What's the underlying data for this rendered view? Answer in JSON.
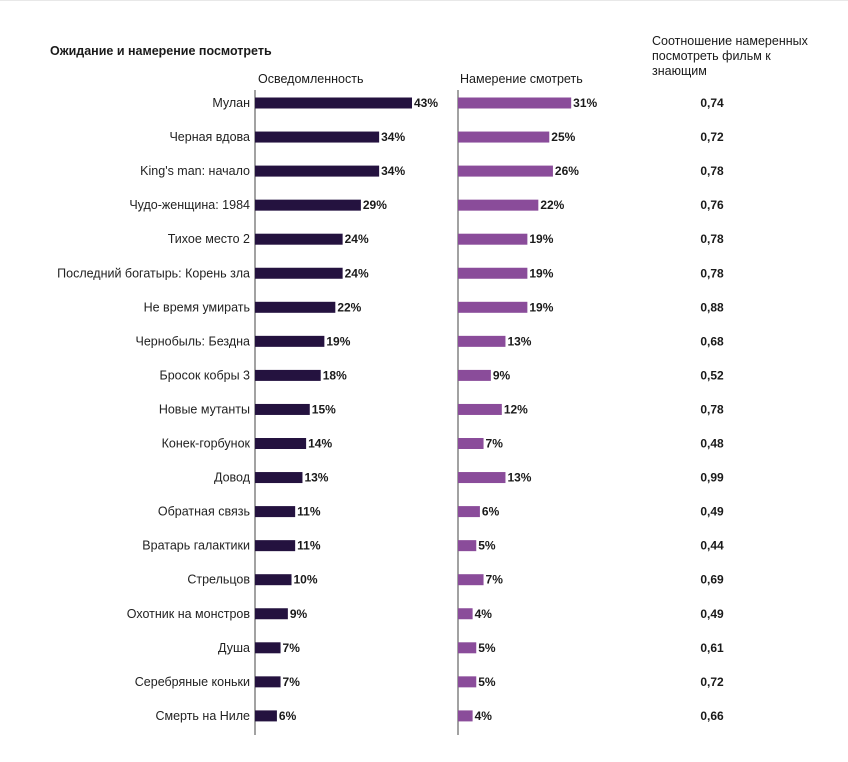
{
  "title": "Ожидание и намерение посмотреть",
  "colors": {
    "awareness": "#24123f",
    "intention": "#8a4c9a"
  },
  "chart_data": {
    "type": "bar",
    "title": "Ожидание и намерение посмотреть",
    "ratio_header": "Соотношение намеренных посмотреть фильм к знающим",
    "categories": [
      "Мулан",
      "Черная вдова",
      "King's man: начало",
      "Чудо-женщина: 1984",
      "Тихое место 2",
      "Последний богатырь: Корень зла",
      "Не время умирать",
      "Чернобыль: Бездна",
      "Бросок кобры 3",
      "Новые мутанты",
      "Конек-горбунок",
      "Довод",
      "Обратная связь",
      "Вратарь галактики",
      "Стрельцов",
      "Охотник на монстров",
      "Душа",
      "Серебряные коньки",
      "Смерть на Ниле"
    ],
    "series": [
      {
        "name": "Осведомленность",
        "values": [
          43,
          34,
          34,
          29,
          24,
          24,
          22,
          19,
          18,
          15,
          14,
          13,
          11,
          11,
          10,
          9,
          7,
          7,
          6
        ]
      },
      {
        "name": "Намерение смотреть",
        "values": [
          31,
          25,
          26,
          22,
          19,
          19,
          19,
          13,
          9,
          12,
          7,
          13,
          6,
          5,
          7,
          4,
          5,
          5,
          4
        ]
      }
    ],
    "ratio": [
      "0,74",
      "0,72",
      "0,78",
      "0,76",
      "0,78",
      "0,78",
      "0,88",
      "0,68",
      "0,52",
      "0,78",
      "0,48",
      "0,99",
      "0,49",
      "0,44",
      "0,69",
      "0,49",
      "0,61",
      "0,72",
      "0,66"
    ],
    "value_suffix": "%"
  }
}
